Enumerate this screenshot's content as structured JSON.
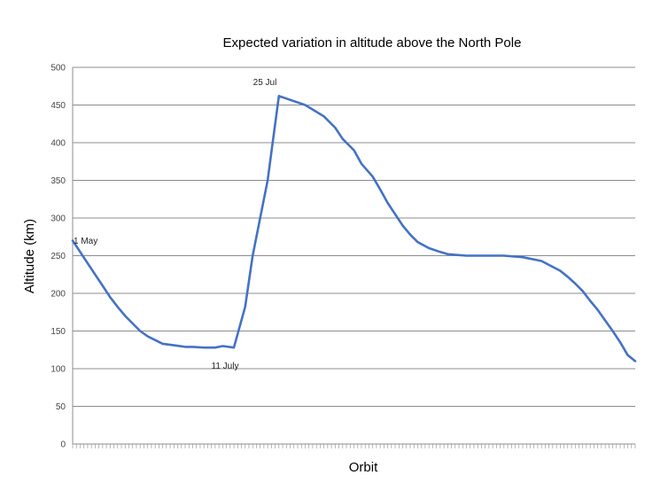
{
  "chart_data": {
    "type": "line",
    "title": "Expected variation in altitude above the North Pole",
    "xlabel": "Orbit",
    "ylabel": "Altitude (km)",
    "ylim": [
      0,
      500
    ],
    "yticks": [
      0,
      50,
      100,
      150,
      200,
      250,
      300,
      350,
      400,
      450,
      500
    ],
    "x_tick_count": 150,
    "grid": true,
    "legend": "none",
    "series": [
      {
        "color": "#4472c4",
        "x": [
          0,
          2,
          4,
          6,
          8,
          10,
          12,
          14,
          16,
          18,
          20,
          22,
          24,
          27,
          30,
          32,
          35,
          38,
          40,
          43,
          46,
          48,
          52,
          55,
          62,
          67,
          70,
          72,
          75,
          77,
          80,
          82,
          84,
          86,
          88,
          90,
          92,
          95,
          98,
          100,
          105,
          110,
          115,
          120,
          125,
          130,
          132,
          134,
          136,
          138,
          140,
          142,
          144,
          146,
          148,
          150
        ],
        "values": [
          270,
          255,
          240,
          225,
          210,
          195,
          182,
          170,
          160,
          150,
          143,
          138,
          133,
          131,
          129,
          129,
          128,
          128,
          130,
          128,
          182,
          250,
          350,
          462,
          450,
          435,
          420,
          405,
          390,
          372,
          355,
          338,
          320,
          305,
          290,
          278,
          268,
          260,
          255,
          252,
          250,
          250,
          250,
          248,
          243,
          230,
          222,
          213,
          203,
          190,
          178,
          164,
          150,
          135,
          118,
          110
        ]
      }
    ],
    "annotations": [
      {
        "text": "1 May"
      },
      {
        "text": "11 July"
      },
      {
        "text": "25 Jul"
      }
    ]
  }
}
